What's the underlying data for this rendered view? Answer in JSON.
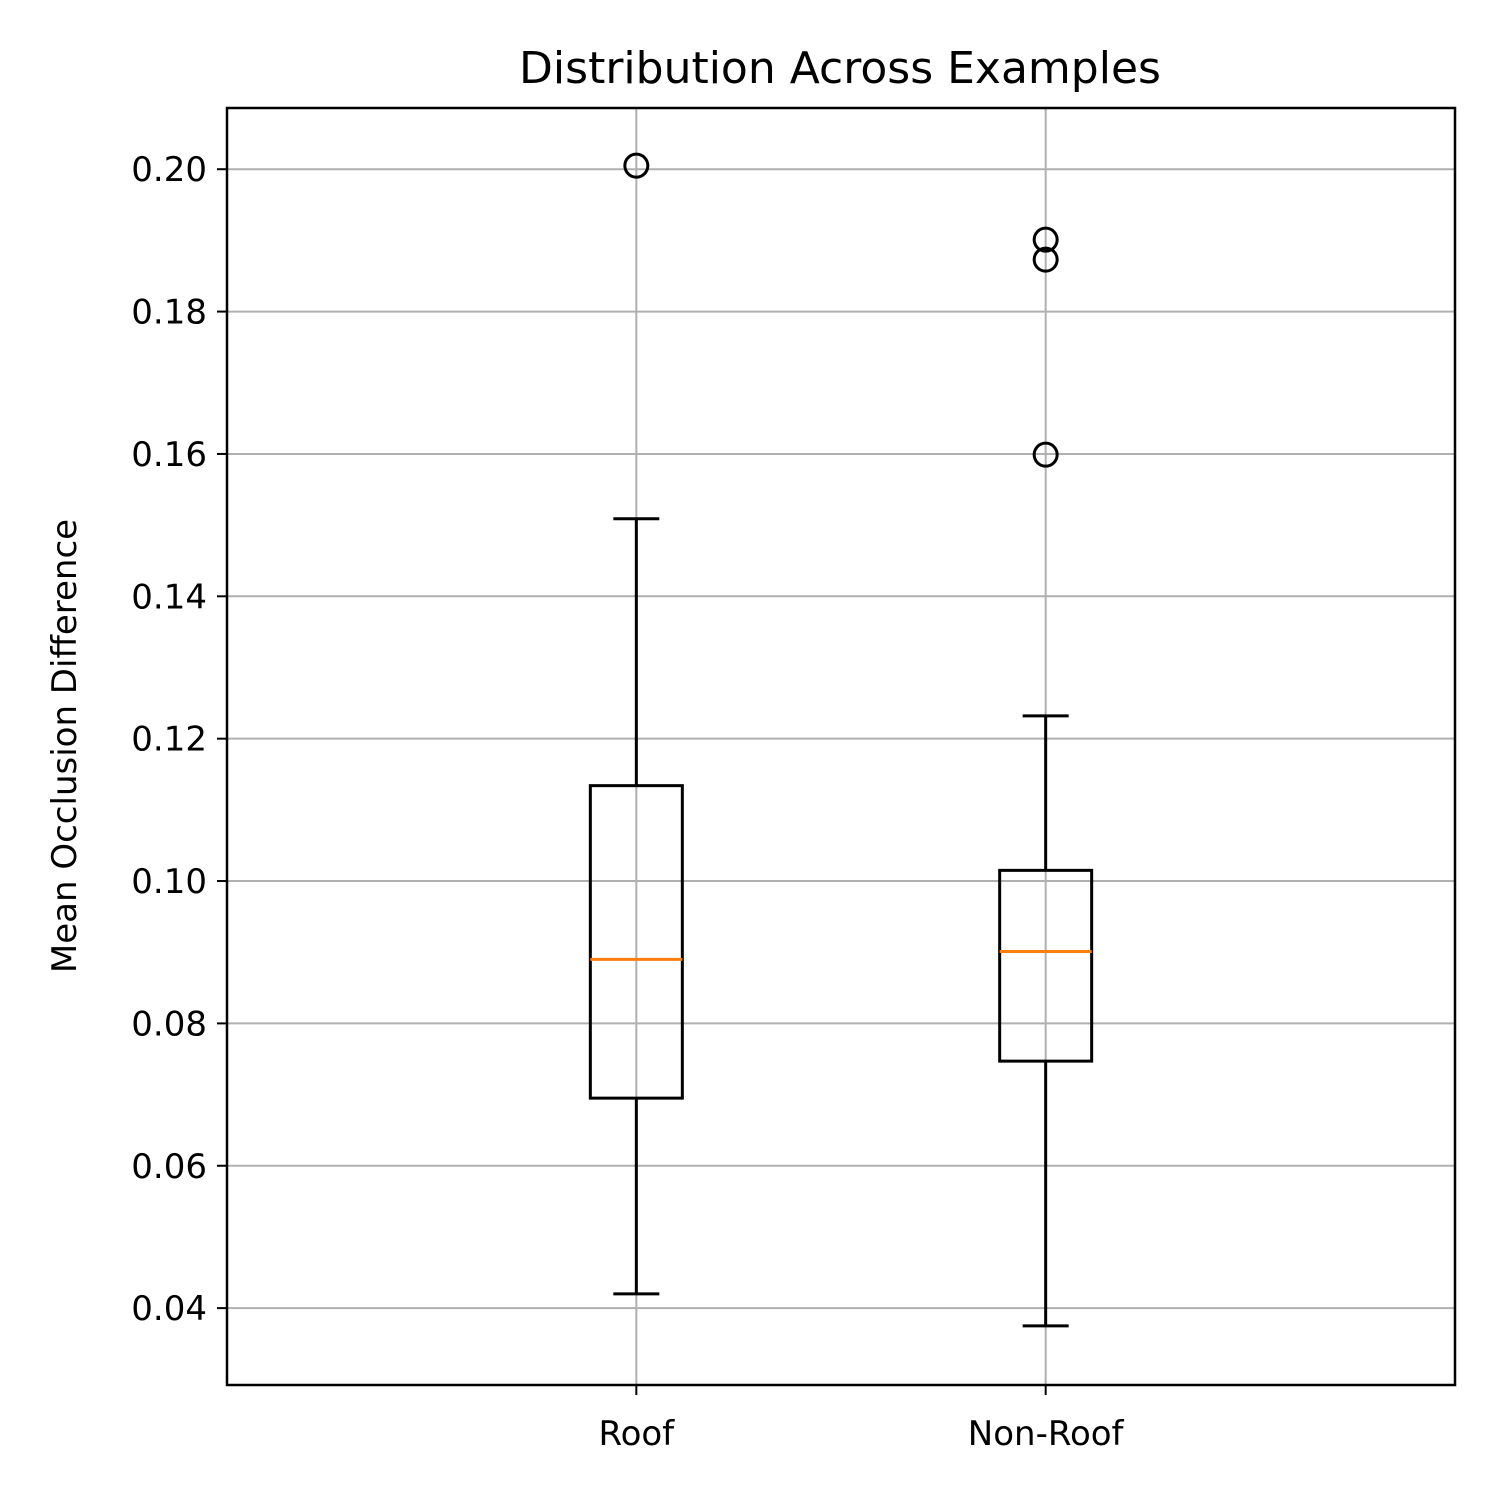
{
  "chart_data": {
    "type": "box",
    "title": "Distribution Across Examples",
    "xlabel": "",
    "ylabel": "Mean Occlusion Difference",
    "ylim": [
      0.0292,
      0.2086
    ],
    "yticks": [
      "0.04",
      "0.06",
      "0.08",
      "0.10",
      "0.12",
      "0.14",
      "0.16",
      "0.18",
      "0.20"
    ],
    "grid": true,
    "categories": [
      "Roof",
      "Non-Roof"
    ],
    "boxes": [
      {
        "category": "Roof",
        "whisker_low": 0.042,
        "q1": 0.0695,
        "median": 0.089,
        "q3": 0.1134,
        "whisker_high": 0.1509,
        "outliers": [
          0.2005
        ]
      },
      {
        "category": "Non-Roof",
        "whisker_low": 0.0375,
        "q1": 0.0747,
        "median": 0.0901,
        "q3": 0.1015,
        "whisker_high": 0.1232,
        "outliers": [
          0.1901,
          0.1873,
          0.1599
        ]
      }
    ],
    "colors": {
      "box": "#000000",
      "median": "#ff7f0e",
      "grid": "#b0b0b0"
    }
  }
}
